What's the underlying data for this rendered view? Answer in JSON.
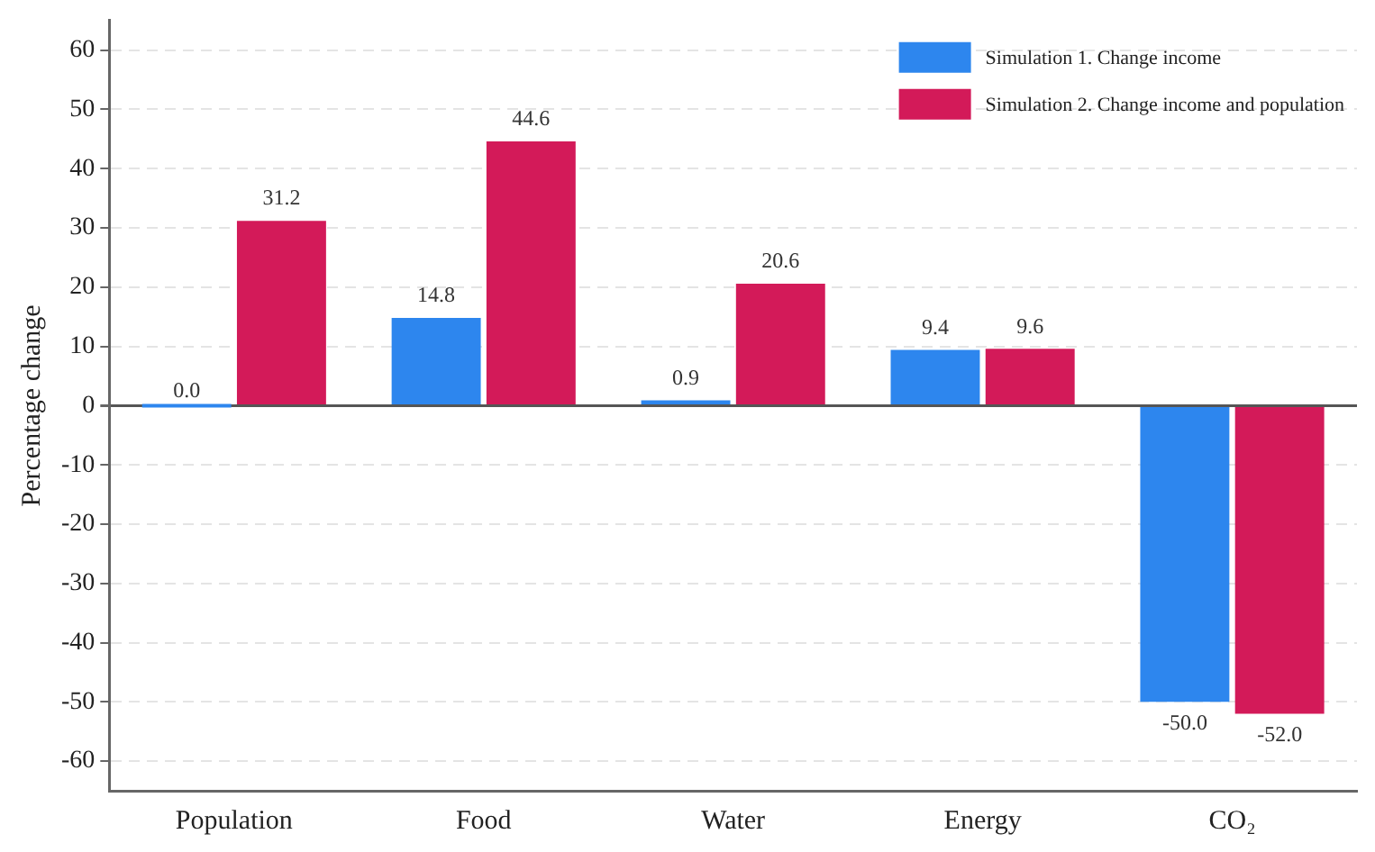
{
  "chart_data": {
    "type": "bar",
    "ylabel": "Percentage change",
    "categories": [
      "Population",
      "Food",
      "Water",
      "Energy",
      "CO₂"
    ],
    "series": [
      {
        "name": "Simulation 1. Change income",
        "color": "#2d86ee",
        "values": [
          0.0,
          14.8,
          0.9,
          9.4,
          -50.0
        ],
        "value_labels": [
          "0.0",
          "14.8",
          "0.9",
          "9.4",
          "-50.0"
        ]
      },
      {
        "name": "Simulation 2. Change income and population",
        "color": "#d31a59",
        "values": [
          31.2,
          44.6,
          20.6,
          9.6,
          -52.0
        ],
        "value_labels": [
          "31.2",
          "44.6",
          "20.6",
          "9.6",
          "-52.0"
        ]
      }
    ],
    "ylim": [
      -65,
      65
    ],
    "yticks": [
      -60,
      -50,
      -40,
      -30,
      -20,
      -10,
      0,
      10,
      20,
      30,
      40,
      50,
      60
    ],
    "grid": "y",
    "legend": "top right"
  }
}
